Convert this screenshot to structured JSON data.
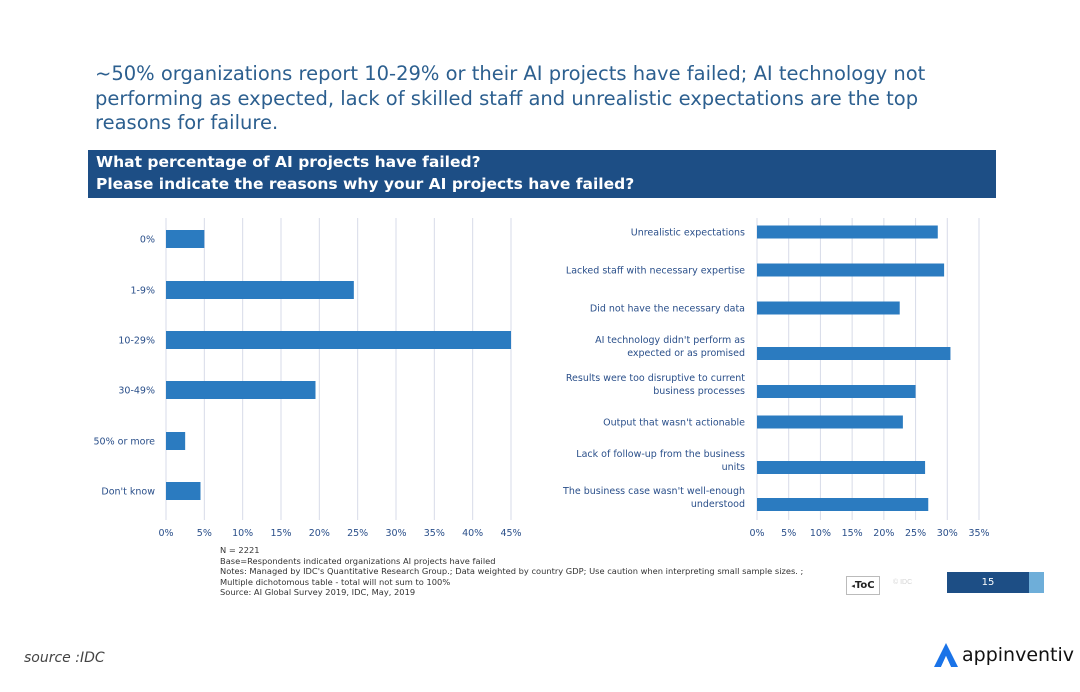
{
  "headline": {
    "line1": "~50% organizations report 10-29% or their AI projects have failed; AI technology not",
    "line2": "performing as expected, lack of skilled staff and unrealistic expectations are the top",
    "line3": "reasons for failure."
  },
  "banner": {
    "line1": "What percentage of AI projects have failed?",
    "line2": "Please indicate the reasons why your AI projects have failed?"
  },
  "colors": {
    "bar": "#2b7bc0",
    "grid": "#d7dbe8",
    "banner": "#1d4e85",
    "headline": "#2c5f8f"
  },
  "chart_data": [
    {
      "type": "bar",
      "orientation": "horizontal",
      "title": "What percentage of AI projects have failed?",
      "categories": [
        "0%",
        "1-9%",
        "10-29%",
        "30-49%",
        "50% or more",
        "Don't know"
      ],
      "values": [
        5,
        24.5,
        45,
        19.5,
        2.5,
        4.5
      ],
      "xticks": [
        "0%",
        "5%",
        "10%",
        "15%",
        "20%",
        "25%",
        "30%",
        "35%",
        "40%",
        "45%"
      ],
      "xlim": [
        0,
        45
      ],
      "grid": true
    },
    {
      "type": "bar",
      "orientation": "horizontal",
      "title": "Please indicate the reasons why your AI projects have failed?",
      "categories": [
        [
          "Unrealistic expectations"
        ],
        [
          "Lacked staff with necessary expertise"
        ],
        [
          "Did not have the necessary data"
        ],
        [
          "AI technology didn't perform as",
          "expected or as promised"
        ],
        [
          "Results were too disruptive to current",
          "business processes"
        ],
        [
          "Output that wasn't actionable"
        ],
        [
          "Lack of follow-up from the business",
          "units"
        ],
        [
          "The business case wasn't well-enough",
          "understood"
        ]
      ],
      "values": [
        28.5,
        29.5,
        22.5,
        30.5,
        25,
        23,
        26.5,
        27
      ],
      "xticks": [
        "0%",
        "5%",
        "10%",
        "15%",
        "20%",
        "25%",
        "30%",
        "35%"
      ],
      "xlim": [
        0,
        35
      ],
      "grid": true
    }
  ],
  "notes": {
    "n": "N = 2221",
    "base": "Base=Respondents indicated organizations AI projects have failed",
    "notes1": "Notes:  Managed by IDC's Quantitative Research Group.; Data weighted by country GDP; Use caution when interpreting small sample sizes. ;",
    "notes2": "Multiple dichotomous table - total will not sum to 100%",
    "source": "Source: AI Global Survey 2019, IDC, May, 2019"
  },
  "footer": {
    "toc_label": "ToC",
    "toc_arrow": "◂",
    "faint_label": "© IDC",
    "page_number": "15",
    "source_caption": "source :IDC",
    "brand": "appinventiv",
    "brand_icon": "appinventiv-logo-icon"
  }
}
